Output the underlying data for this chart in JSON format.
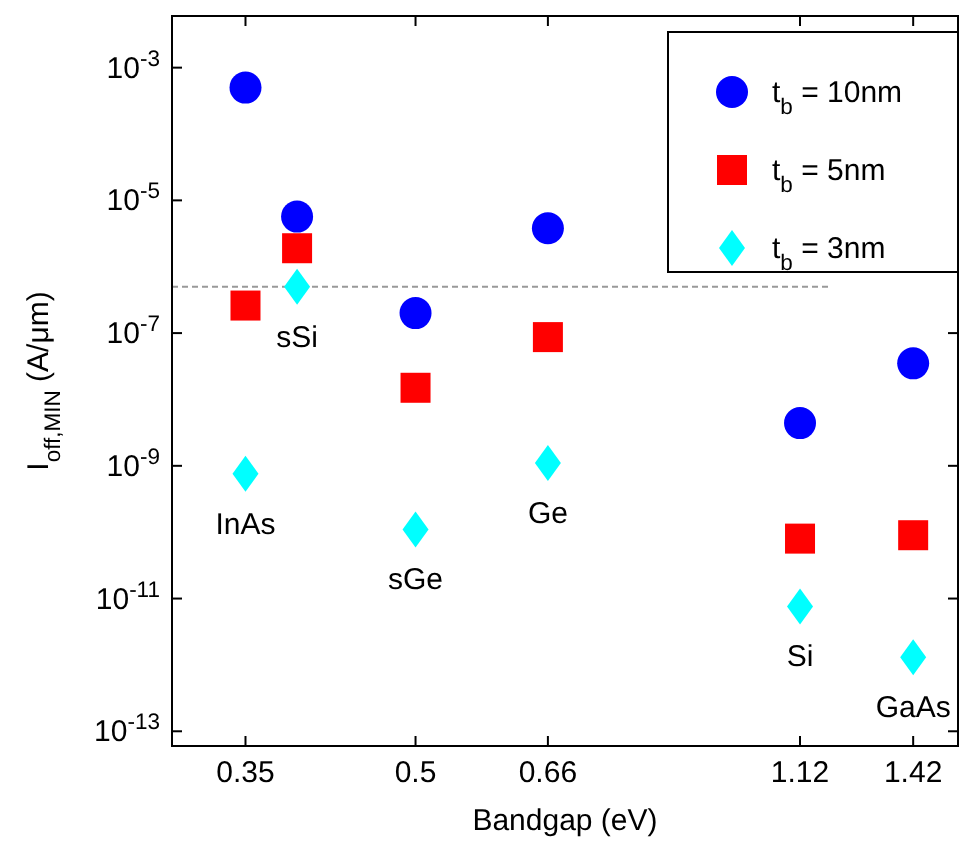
{
  "chart_data": {
    "type": "scatter",
    "xlabel": "Bandgap (eV)",
    "ylabel": "I$_{off,MIN}$ (A/μm)",
    "log": "xy",
    "x": [
      0.35,
      0.39,
      0.5,
      0.66,
      1.12,
      1.42
    ],
    "xlim": [
      0.3,
      1.56
    ],
    "xticks": [
      0.35,
      0.5,
      0.66,
      1.12,
      1.42
    ],
    "ylim": [
      6e-14,
      0.006
    ],
    "yticks": [
      {
        "value": 0.001,
        "label": "10$^{-3}$"
      },
      {
        "value": 1e-05,
        "label": "10$^{-5}$"
      },
      {
        "value": 1e-07,
        "label": "10$^{-7}$"
      },
      {
        "value": 1e-09,
        "label": "10$^{-9}$"
      },
      {
        "value": 1e-11,
        "label": "10$^{-11}$"
      },
      {
        "value": 1e-13,
        "label": "10$^{-13}$"
      }
    ],
    "series": [
      {
        "name": "t$_{b}$ = 10nm",
        "color": "#0000ff",
        "marker": "circle",
        "values": [
          0.0005,
          5.7e-06,
          2e-07,
          3.8e-06,
          4.4e-09,
          3.5e-08
        ]
      },
      {
        "name": "t$_{b}$ = 5nm",
        "color": "#ff0000",
        "marker": "square",
        "values": [
          2.6e-07,
          1.9e-06,
          1.5e-08,
          8.7e-08,
          8e-11,
          9e-11
        ]
      },
      {
        "name": "t$_{b}$ = 3nm",
        "color": "#00ffff",
        "marker": "diamond",
        "values": [
          7.6e-10,
          5e-07,
          1.1e-10,
          1.1e-09,
          7.6e-12,
          1.3e-12
        ]
      }
    ],
    "ref_lines": [
      {
        "axis": "y",
        "value": 5e-07,
        "color": "#999999",
        "line_style": "dashed"
      }
    ],
    "annotations": [
      {
        "text": "InAs",
        "x": 0.35,
        "y": 7.6e-10
      },
      {
        "text": "sSi",
        "x": 0.39,
        "y": 5e-07
      },
      {
        "text": "sGe",
        "x": 0.5,
        "y": 1.1e-10
      },
      {
        "text": "Ge",
        "x": 0.66,
        "y": 1.1e-09
      },
      {
        "text": "Si",
        "x": 1.12,
        "y": 7.6e-12
      },
      {
        "text": "GaAs",
        "x": 1.42,
        "y": 1.3e-12
      }
    ],
    "legend": "top right",
    "grid": false
  }
}
